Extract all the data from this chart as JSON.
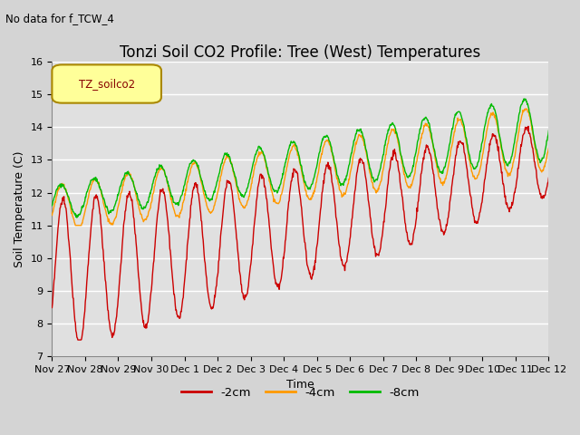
{
  "title": "Tonzi Soil CO2 Profile: Tree (West) Temperatures",
  "subtitle": "No data for f_TCW_4",
  "xlabel": "Time",
  "ylabel": "Soil Temperature (C)",
  "ylim": [
    7.0,
    16.0
  ],
  "yticks": [
    7.0,
    8.0,
    9.0,
    10.0,
    11.0,
    12.0,
    13.0,
    14.0,
    15.0,
    16.0
  ],
  "xtick_labels": [
    "Nov 27",
    "Nov 28",
    "Nov 29",
    "Nov 30",
    "Dec 1",
    "Dec 2",
    "Dec 3",
    "Dec 4",
    "Dec 5",
    "Dec 6",
    "Dec 7",
    "Dec 8",
    "Dec 9",
    "Dec 10",
    "Dec 11",
    "Dec 12"
  ],
  "legend_box_label": "TZ_soilco2",
  "legend_box_color": "#ffff99",
  "legend_box_border": "#aa8800",
  "line_colors": [
    "#cc0000",
    "#ff9900",
    "#00bb00"
  ],
  "line_labels": [
    "-2cm",
    "-4cm",
    "-8cm"
  ],
  "fig_facecolor": "#d4d4d4",
  "plot_bg_color": "#e0e0e0",
  "title_fontsize": 12,
  "axis_fontsize": 9,
  "tick_fontsize": 8
}
